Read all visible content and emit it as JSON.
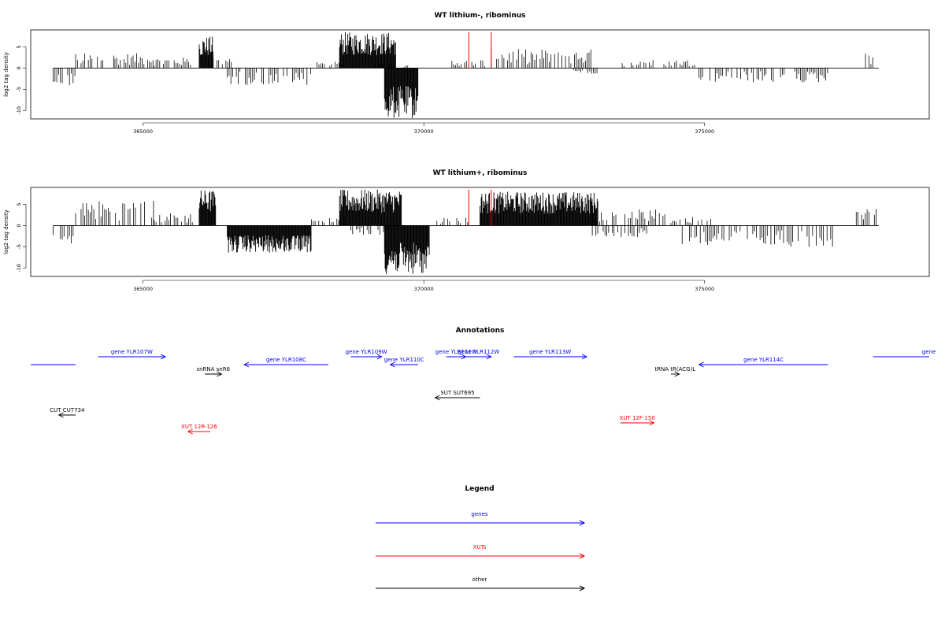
{
  "chart_data": [
    {
      "type": "bar",
      "title": "WT lithium-, ribominus",
      "xlabel": "",
      "ylabel": "log2 tag density",
      "xlim": [
        363000,
        379000
      ],
      "ylim": [
        -12,
        9
      ],
      "xticks": [
        365000,
        370000,
        375000
      ],
      "xtick_labels": [
        "365000",
        "370000",
        "375000"
      ],
      "yticks": [
        -10,
        -5,
        0,
        5
      ],
      "ytick_labels": [
        "-10",
        "-5",
        "0",
        "5"
      ],
      "data_extent": [
        363400,
        378100
      ],
      "series": [
        {
          "name": "",
          "color": "#000000",
          "segments": [
            {
              "start": 363400,
              "end": 363800,
              "value": -4.5
            },
            {
              "start": 363800,
              "end": 364500,
              "value": 3.5
            },
            {
              "start": 364500,
              "end": 365200,
              "value": 3.5
            },
            {
              "start": 365200,
              "end": 365900,
              "value": 2.5
            },
            {
              "start": 366000,
              "end": 366250,
              "value": 7.5
            },
            {
              "start": 366250,
              "end": 366600,
              "value": 3
            },
            {
              "start": 366500,
              "end": 368000,
              "value": -4
            },
            {
              "start": 368100,
              "end": 368600,
              "value": 1.5
            },
            {
              "start": 368500,
              "end": 369500,
              "value": 8.5
            },
            {
              "start": 369100,
              "end": 369800,
              "value": 1.5
            },
            {
              "start": 369300,
              "end": 369900,
              "value": -12
            },
            {
              "start": 370500,
              "end": 371100,
              "value": 2
            },
            {
              "start": 371200,
              "end": 373000,
              "value": 4.5
            },
            {
              "start": 372600,
              "end": 373100,
              "value": -1.5
            },
            {
              "start": 373500,
              "end": 374900,
              "value": 2
            },
            {
              "start": 374900,
              "end": 377200,
              "value": -3.5
            },
            {
              "start": 377800,
              "end": 378000,
              "value": 3.5
            }
          ]
        }
      ],
      "markers": [
        {
          "x": 370800,
          "color": "#ff0000"
        },
        {
          "x": 371200,
          "color": "#ff0000"
        }
      ]
    },
    {
      "type": "bar",
      "title": "WT lithium+, ribominus",
      "xlabel": "",
      "ylabel": "log2 tag density",
      "xlim": [
        363000,
        379000
      ],
      "ylim": [
        -12,
        9
      ],
      "xticks": [
        365000,
        370000,
        375000
      ],
      "xtick_labels": [
        "365000",
        "370000",
        "375000"
      ],
      "yticks": [
        -10,
        -5,
        0,
        5
      ],
      "ytick_labels": [
        "-10",
        "-5",
        "0",
        "5"
      ],
      "data_extent": [
        363400,
        378100
      ],
      "series": [
        {
          "name": "",
          "color": "#000000",
          "segments": [
            {
              "start": 363400,
              "end": 363800,
              "value": -4.5
            },
            {
              "start": 363800,
              "end": 365200,
              "value": 6
            },
            {
              "start": 365200,
              "end": 365900,
              "value": 3
            },
            {
              "start": 366000,
              "end": 366300,
              "value": 8.5
            },
            {
              "start": 366500,
              "end": 368000,
              "value": -6.5
            },
            {
              "start": 368000,
              "end": 368600,
              "value": 2
            },
            {
              "start": 368500,
              "end": 369600,
              "value": 8.5
            },
            {
              "start": 368700,
              "end": 369400,
              "value": -2.5
            },
            {
              "start": 369300,
              "end": 370100,
              "value": -11.5
            },
            {
              "start": 370200,
              "end": 370800,
              "value": 2
            },
            {
              "start": 371000,
              "end": 373100,
              "value": 8
            },
            {
              "start": 373000,
              "end": 374300,
              "value": 4
            },
            {
              "start": 373000,
              "end": 374000,
              "value": -3
            },
            {
              "start": 374400,
              "end": 375200,
              "value": 2
            },
            {
              "start": 374600,
              "end": 377300,
              "value": -5
            },
            {
              "start": 377700,
              "end": 378100,
              "value": 4
            }
          ]
        }
      ],
      "markers": [
        {
          "x": 370800,
          "color": "#ff0000"
        },
        {
          "x": 371200,
          "color": "#ff0000"
        }
      ]
    }
  ],
  "annotations": {
    "title": "Annotations",
    "xlim": [
      363000,
      379000
    ],
    "features": [
      {
        "label": "",
        "start": 363000,
        "end": 363800,
        "dir": "none",
        "row": 1,
        "type": "gene"
      },
      {
        "label": "gene YLR107W",
        "start": 364200,
        "end": 365400,
        "dir": "right",
        "row": 0,
        "type": "gene"
      },
      {
        "label": "snRNA snR6",
        "start": 366100,
        "end": 366400,
        "dir": "right",
        "row": 2,
        "type": "other"
      },
      {
        "label": "gene YLR108C",
        "start": 366800,
        "end": 368300,
        "dir": "left",
        "row": 1,
        "type": "gene"
      },
      {
        "label": "gene YLR109W",
        "start": 368700,
        "end": 369250,
        "dir": "right",
        "row": 0,
        "type": "gene"
      },
      {
        "label": "gene YLR110C",
        "start": 369400,
        "end": 369900,
        "dir": "left",
        "row": 1,
        "type": "gene"
      },
      {
        "label": "gene YLR111W",
        "start": 370400,
        "end": 370750,
        "dir": "right",
        "row": 0,
        "type": "gene"
      },
      {
        "label": "gene YLR112W",
        "start": 370750,
        "end": 371200,
        "dir": "right",
        "row": 0,
        "type": "gene"
      },
      {
        "label": "gene YLR113W",
        "start": 371600,
        "end": 372900,
        "dir": "right",
        "row": 0,
        "type": "gene"
      },
      {
        "label": "tRNA tR(ACG)L",
        "start": 374400,
        "end": 374550,
        "dir": "right",
        "row": 2,
        "type": "other"
      },
      {
        "label": "gene YLR114C",
        "start": 374900,
        "end": 377200,
        "dir": "left",
        "row": 1,
        "type": "gene"
      },
      {
        "label": "gene",
        "start": 378000,
        "end": 379000,
        "dir": "none",
        "row": 0,
        "type": "gene"
      },
      {
        "label": "SUT SUT695",
        "start": 370200,
        "end": 371000,
        "dir": "left",
        "row": 4,
        "type": "other"
      },
      {
        "label": "CUT CUT734",
        "start": 363500,
        "end": 363800,
        "dir": "left",
        "row": 5,
        "type": "other"
      },
      {
        "label": "XUT 12F-150",
        "start": 373500,
        "end": 374100,
        "dir": "right",
        "row": 6,
        "type": "xut"
      },
      {
        "label": "XUT 12R-126",
        "start": 365800,
        "end": 366200,
        "dir": "left",
        "row": 7,
        "type": "xut"
      }
    ]
  },
  "legend": {
    "title": "Legend",
    "items": [
      {
        "label": "genes",
        "color": "#0000ff"
      },
      {
        "label": "XUTs",
        "color": "#ff0000"
      },
      {
        "label": "other",
        "color": "#000000"
      }
    ]
  },
  "colors": {
    "gene": "#0000ff",
    "xut": "#ff0000",
    "other": "#000000"
  }
}
